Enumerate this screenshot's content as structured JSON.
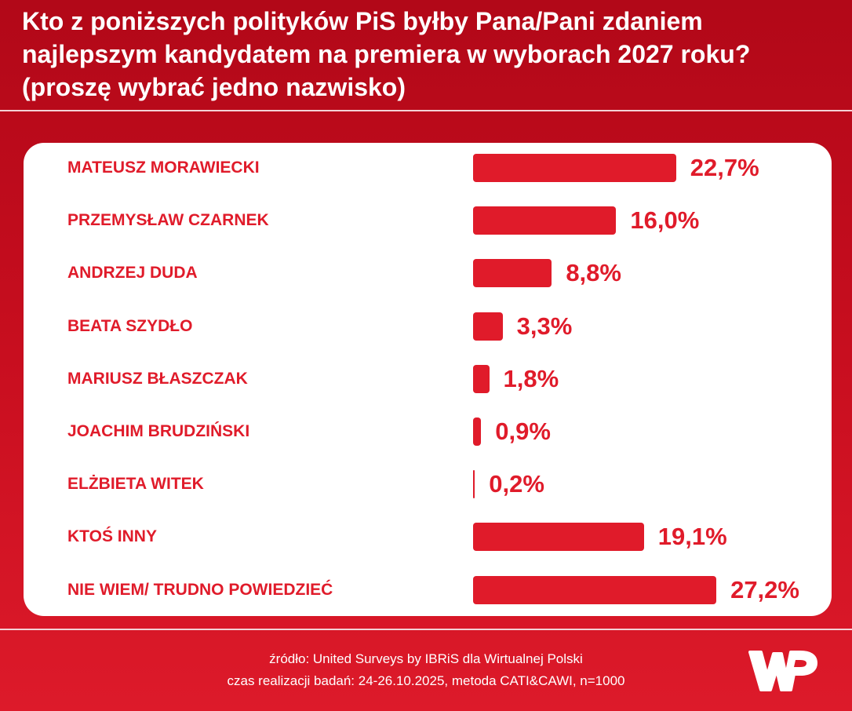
{
  "header": {
    "title_lines": [
      "Kto z poniższych polityków PiS byłby Pana/Pani zdaniem",
      "najlepszym kandydatem na premiera w wyborach 2027 roku?",
      "(proszę wybrać jedno nazwisko)"
    ]
  },
  "chart_data": {
    "type": "bar",
    "orientation": "horizontal",
    "title": "Kto z poniższych polityków PiS byłby Pana/Pani zdaniem najlepszym kandydatem na premiera w wyborach 2027 roku? (proszę wybrać jedno nazwisko)",
    "categories": [
      "MATEUSZ MORAWIECKI",
      "PRZEMYSŁAW CZARNEK",
      "ANDRZEJ DUDA",
      "BEATA SZYDŁO",
      "MARIUSZ BŁASZCZAK",
      "JOACHIM BRUDZIŃSKI",
      "ELŻBIETA WITEK",
      "KTOŚ INNY",
      "NIE WIEM/ TRUDNO POWIEDZIEĆ"
    ],
    "values": [
      22.7,
      16.0,
      8.8,
      3.3,
      1.8,
      0.9,
      0.2,
      19.1,
      27.2
    ],
    "data_labels": [
      "22,7%",
      "16,0%",
      "8,8%",
      "3,3%",
      "1,8%",
      "0,9%",
      "0,2%",
      "19,1%",
      "27,2%"
    ],
    "unit": "%",
    "grid": false,
    "bar_color": "#e01b2a"
  },
  "footer": {
    "source": "źródło: United Surveys by IBRiS dla Wirtualnej Polski",
    "details": "czas realizacji badań: 24-26.10.2025, metoda CATI&CAWI, n=1000",
    "logo_text": "WP"
  },
  "colors": {
    "accent": "#e01b2a",
    "background_top": "#b20818",
    "background_bottom": "#dd1a2a"
  }
}
